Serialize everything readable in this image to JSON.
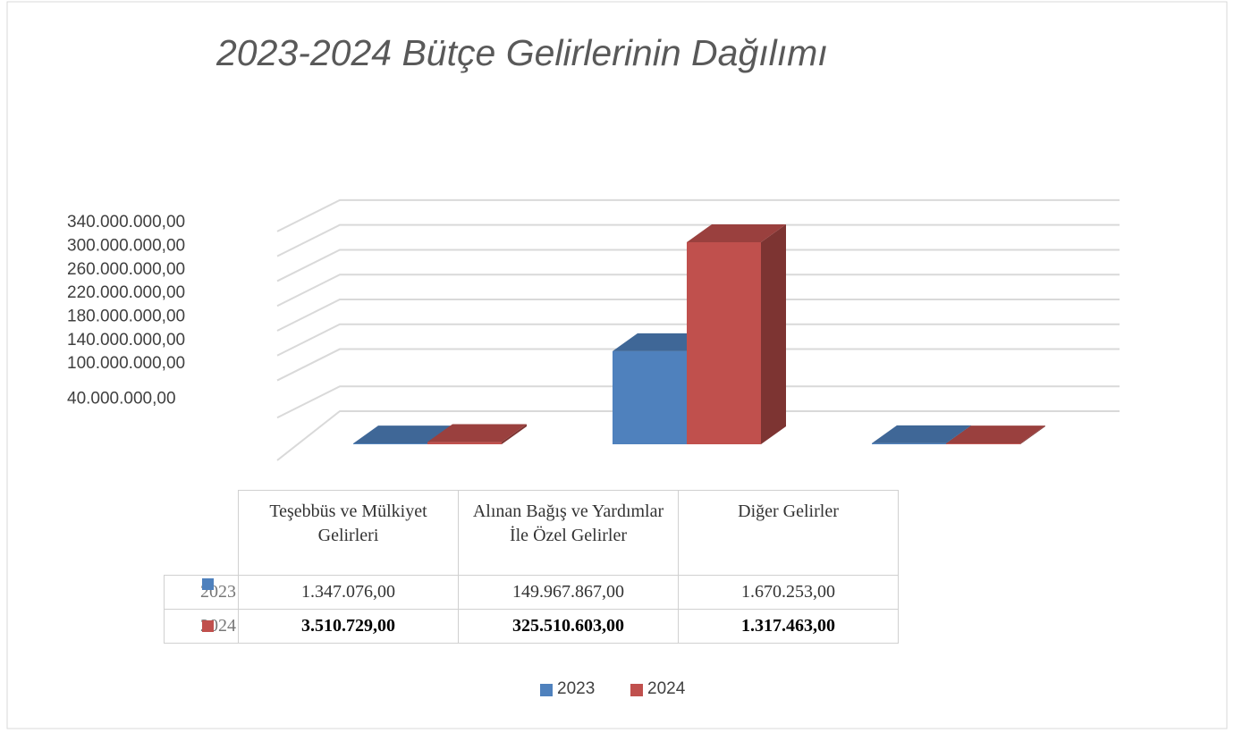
{
  "chart_data": {
    "type": "bar3d",
    "title": "2023-2024 Bütçe Gelirlerinin Dağılımı",
    "categories": [
      "Teşebbüs ve Mülkiyet Gelirleri",
      "Alınan Bağış ve Yardımlar İle Özel Gelirler",
      "Diğer Gelirler"
    ],
    "series": [
      {
        "name": "2023",
        "color": "#4f81bd",
        "values": [
          1347076,
          149967867,
          1670253
        ],
        "value_labels": [
          "1.347.076,00",
          "149.967.867,00",
          "1.670.253,00"
        ]
      },
      {
        "name": "2024",
        "color": "#c0504d",
        "values": [
          3510729,
          325510603,
          1317463
        ],
        "value_labels": [
          "3.510.729,00",
          "325.510.603,00",
          "1.317.463,00"
        ]
      }
    ],
    "ylim": [
      0,
      360000000
    ],
    "yticks": [
      {
        "value": 40000000,
        "label": "40.000.000,00"
      },
      {
        "value": 100000000,
        "label": "100.000.000,00"
      },
      {
        "value": 140000000,
        "label": "140.000.000,00"
      },
      {
        "value": 180000000,
        "label": "180.000.000,00"
      },
      {
        "value": 220000000,
        "label": "220.000.000,00"
      },
      {
        "value": 260000000,
        "label": "260.000.000,00"
      },
      {
        "value": 300000000,
        "label": "300.000.000,00"
      },
      {
        "value": 340000000,
        "label": "340.000.000,00"
      }
    ],
    "grid": true,
    "data_table": true,
    "legend": "bottom"
  }
}
